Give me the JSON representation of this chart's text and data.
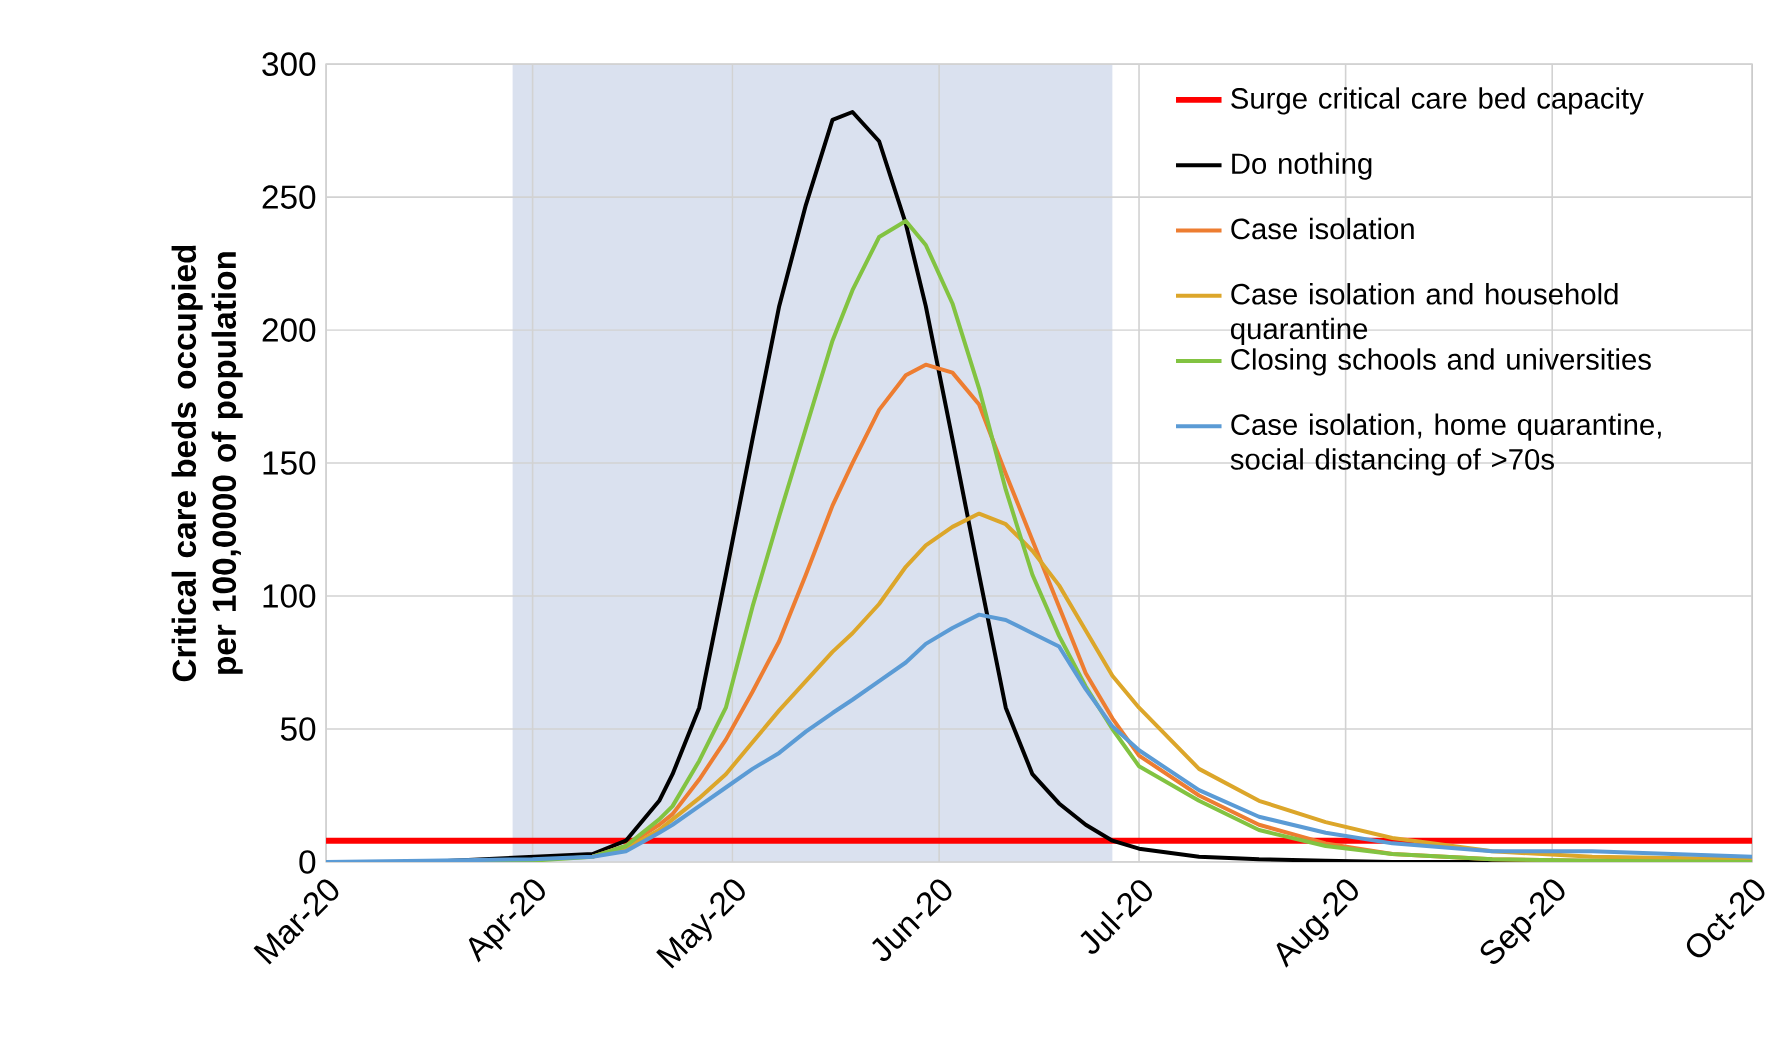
{
  "chart_data": {
    "type": "line",
    "ylabel": "Critical care beds occupied per 100,0000 of population",
    "x": [
      "2020-03-01",
      "2020-03-16",
      "2020-04-01",
      "2020-04-10",
      "2020-04-15",
      "2020-04-20",
      "2020-04-22",
      "2020-04-26",
      "2020-04-30",
      "2020-05-04",
      "2020-05-08",
      "2020-05-12",
      "2020-05-16",
      "2020-05-19",
      "2020-05-23",
      "2020-05-27",
      "2020-05-30",
      "2020-06-03",
      "2020-06-07",
      "2020-06-11",
      "2020-06-15",
      "2020-06-19",
      "2020-06-23",
      "2020-06-27",
      "2020-07-01",
      "2020-07-10",
      "2020-07-19",
      "2020-07-29",
      "2020-08-08",
      "2020-08-23",
      "2020-09-07",
      "2020-10-01"
    ],
    "series": [
      {
        "name": "Do nothing",
        "color": "#000000",
        "values": [
          0,
          0,
          null,
          3,
          8,
          23,
          33,
          58,
          108,
          159,
          209,
          247,
          279,
          282,
          271,
          240,
          209,
          159,
          108,
          58,
          33,
          22,
          14,
          8,
          5,
          2,
          1,
          0.5,
          0,
          0,
          0,
          0
        ]
      },
      {
        "name": "Case isolation",
        "color": "#ed7d31",
        "values": [
          null,
          null,
          null,
          2,
          6,
          14,
          18,
          31,
          46,
          64,
          83,
          108,
          134,
          150,
          170,
          183,
          187,
          184,
          172,
          146,
          121,
          96,
          71,
          54,
          40,
          25,
          14,
          7,
          3,
          1,
          0.5,
          0
        ]
      },
      {
        "name": "Case isolation and household quarantine",
        "color": "#dca62a",
        "values": [
          null,
          null,
          null,
          2,
          5,
          12,
          16,
          24,
          33,
          45,
          57,
          68,
          79,
          86,
          97,
          111,
          119,
          126,
          131,
          127,
          117,
          104,
          87,
          70,
          58,
          35,
          23,
          15,
          9,
          4,
          2,
          1
        ]
      },
      {
        "name": "Closing schools and universities",
        "color": "#82c341",
        "values": [
          0,
          0,
          0.5,
          2,
          6,
          16,
          21,
          38,
          58,
          96,
          130,
          163,
          196,
          215,
          235,
          241,
          232,
          210,
          178,
          140,
          108,
          85,
          66,
          50,
          36,
          23,
          12,
          6,
          3,
          1,
          0.5,
          0
        ]
      },
      {
        "name": "Case isolation, home quarantine, social distancing of >70s",
        "color": "#5b9bd5",
        "values": [
          0,
          0.5,
          1,
          2,
          4,
          11,
          14,
          21,
          28,
          35,
          41,
          49,
          56,
          61,
          68,
          75,
          82,
          88,
          93,
          91,
          86,
          81,
          65,
          51,
          42,
          27,
          17,
          11,
          7,
          4,
          4,
          2
        ]
      }
    ],
    "ref_lines": [
      {
        "axis": "y",
        "value": 8,
        "label": "Surge critical care bed capacity",
        "color": "#ff0000"
      }
    ],
    "bands": [
      {
        "axis": "x",
        "from": "2020-03-29",
        "to": "2020-06-27",
        "color": "#dae1ef"
      }
    ],
    "xlim": [
      "2020-03-01",
      "2020-10-01"
    ],
    "xticks": [
      {
        "value": "2020-03-01",
        "label": "Mar-20"
      },
      {
        "value": "2020-04-01",
        "label": "Apr-20"
      },
      {
        "value": "2020-05-01",
        "label": "May-20"
      },
      {
        "value": "2020-06-01",
        "label": "Jun-20"
      },
      {
        "value": "2020-07-01",
        "label": "Jul-20"
      },
      {
        "value": "2020-08-01",
        "label": "Aug-20"
      },
      {
        "value": "2020-09-01",
        "label": "Sep-20"
      },
      {
        "value": "2020-10-01",
        "label": "Oct-20"
      }
    ],
    "ylim": [
      0,
      300
    ],
    "yticks": [
      0,
      50,
      100,
      150,
      200,
      250,
      300
    ],
    "grid": true,
    "legend": "top right"
  }
}
